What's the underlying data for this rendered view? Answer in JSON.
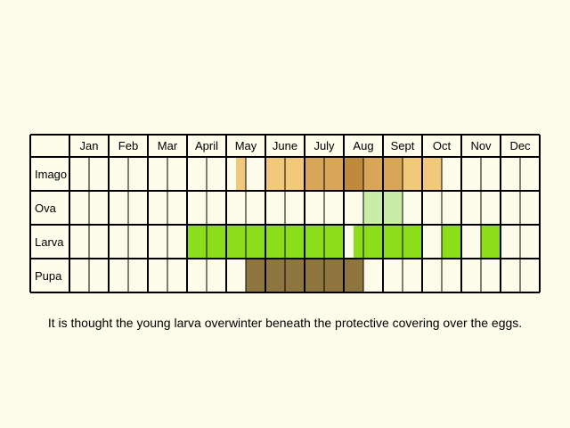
{
  "months": [
    "Jan",
    "Feb",
    "Mar",
    "April",
    "May",
    "June",
    "July",
    "Aug",
    "Sept",
    "Oct",
    "Nov",
    "Dec"
  ],
  "stages": [
    "Imago",
    "Ova",
    "Larva",
    "Pupa"
  ],
  "colors": {
    "imago_light": "#f2c97a",
    "imago_mid": "#d9a558",
    "imago_dark": "#c08a3e",
    "ova": "#c9eca8",
    "larva": "#8cdd1a",
    "pupa": "#8f7540",
    "grid": "#000000",
    "background": "#fdfbea"
  },
  "chart_data": {
    "type": "table",
    "columns_per_month": 2,
    "occupancy": {
      "Imago": [
        {
          "half": 8,
          "fill": "imago_light",
          "part": "right-half"
        },
        {
          "half": 10,
          "fill": "imago_light"
        },
        {
          "half": 11,
          "fill": "imago_light"
        },
        {
          "half": 12,
          "fill": "imago_mid"
        },
        {
          "half": 13,
          "fill": "imago_mid"
        },
        {
          "half": 14,
          "fill": "imago_dark"
        },
        {
          "half": 15,
          "fill": "imago_mid"
        },
        {
          "half": 16,
          "fill": "imago_mid"
        },
        {
          "half": 17,
          "fill": "imago_light"
        },
        {
          "half": 18,
          "fill": "imago_light"
        }
      ],
      "Ova": [
        {
          "half": 15,
          "fill": "ova"
        },
        {
          "half": 16,
          "fill": "ova"
        }
      ],
      "Larva": [
        {
          "half": 6,
          "fill": "larva"
        },
        {
          "half": 7,
          "fill": "larva"
        },
        {
          "half": 8,
          "fill": "larva"
        },
        {
          "half": 9,
          "fill": "larva"
        },
        {
          "half": 10,
          "fill": "larva"
        },
        {
          "half": 11,
          "fill": "larva"
        },
        {
          "half": 12,
          "fill": "larva"
        },
        {
          "half": 13,
          "fill": "larva"
        },
        {
          "half": 14,
          "fill": "larva",
          "part": "right-half"
        },
        {
          "half": 15,
          "fill": "larva"
        },
        {
          "half": 16,
          "fill": "larva"
        },
        {
          "half": 17,
          "fill": "larva"
        },
        {
          "half": 19,
          "fill": "larva"
        },
        {
          "half": 21,
          "fill": "larva"
        }
      ],
      "Pupa": [
        {
          "half": 9,
          "fill": "pupa"
        },
        {
          "half": 10,
          "fill": "pupa"
        },
        {
          "half": 11,
          "fill": "pupa"
        },
        {
          "half": 12,
          "fill": "pupa"
        },
        {
          "half": 13,
          "fill": "pupa"
        },
        {
          "half": 14,
          "fill": "pupa"
        }
      ]
    }
  },
  "note": "It is thought the young larva overwinter beneath the protective covering over the eggs."
}
